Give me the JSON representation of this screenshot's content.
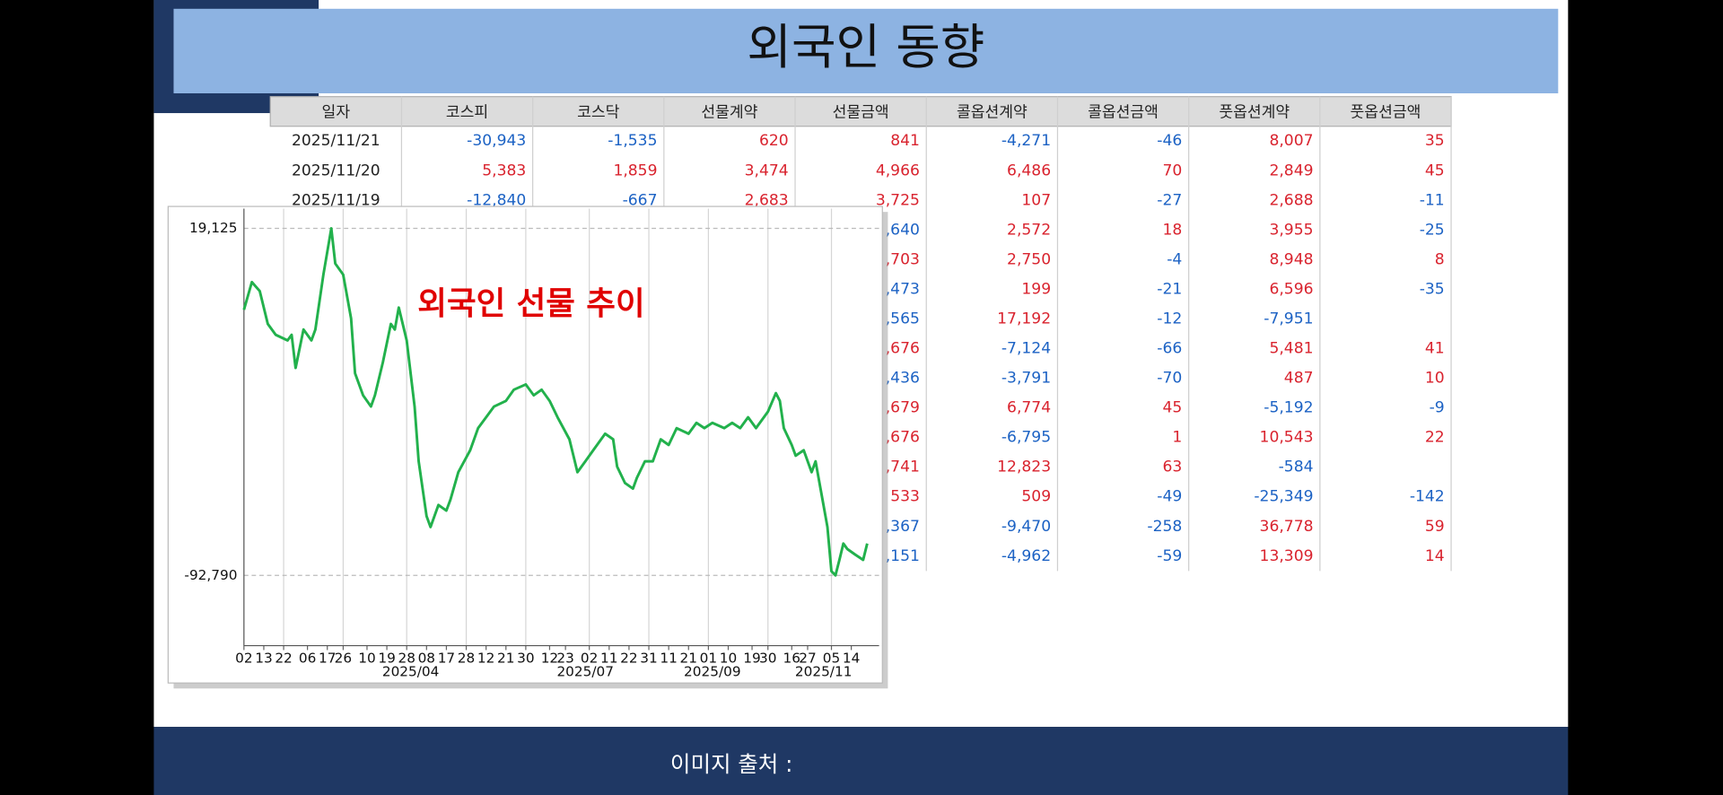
{
  "header": {
    "title": "외국인 동향"
  },
  "table": {
    "columns": [
      "일자",
      "코스피",
      "코스닥",
      "선물계약",
      "선물금액",
      "콜옵션계약",
      "콜옵션금액",
      "풋옵션계약",
      "풋옵션금액"
    ],
    "positive_color": "#d9232e",
    "negative_color": "#1c62c4",
    "rows": [
      [
        "2025/11/21",
        "-30,943",
        "-1,535",
        "620",
        "841",
        "-4,271",
        "-46",
        "8,007",
        "35"
      ],
      [
        "2025/11/20",
        "5,383",
        "1,859",
        "3,474",
        "4,966",
        "6,486",
        "70",
        "2,849",
        "45"
      ],
      [
        "2025/11/19",
        "-12,840",
        "-667",
        "2,683",
        "3,725",
        "107",
        "-27",
        "2,688",
        "-11"
      ],
      [
        null,
        null,
        null,
        null,
        {
          "text": ",640",
          "color": "#1c62c4"
        },
        "2,572",
        "18",
        "3,955",
        "-25"
      ],
      [
        null,
        null,
        null,
        null,
        {
          "text": ",703",
          "color": "#d9232e"
        },
        "2,750",
        "-4",
        "8,948",
        "8"
      ],
      [
        null,
        null,
        null,
        null,
        {
          "text": ",473",
          "color": "#1c62c4"
        },
        "199",
        "-21",
        "6,596",
        "-35"
      ],
      [
        null,
        null,
        null,
        null,
        {
          "text": ",565",
          "color": "#1c62c4"
        },
        "17,192",
        "-12",
        "-7,951",
        null
      ],
      [
        null,
        null,
        null,
        null,
        {
          "text": ",676",
          "color": "#d9232e"
        },
        "-7,124",
        "-66",
        "5,481",
        "41"
      ],
      [
        null,
        null,
        null,
        null,
        {
          "text": ",436",
          "color": "#1c62c4"
        },
        "-3,791",
        "-70",
        "487",
        "10"
      ],
      [
        null,
        null,
        null,
        null,
        {
          "text": ",679",
          "color": "#d9232e"
        },
        "6,774",
        "45",
        "-5,192",
        "-9"
      ],
      [
        null,
        null,
        null,
        null,
        {
          "text": ",676",
          "color": "#d9232e"
        },
        "-6,795",
        "1",
        "10,543",
        "22"
      ],
      [
        null,
        null,
        null,
        null,
        {
          "text": ",741",
          "color": "#d9232e"
        },
        "12,823",
        "63",
        "-584",
        null
      ],
      [
        null,
        null,
        null,
        null,
        {
          "text": "533",
          "color": "#d9232e"
        },
        "509",
        "-49",
        "-25,349",
        "-142"
      ],
      [
        null,
        null,
        null,
        null,
        {
          "text": ",367",
          "color": "#1c62c4"
        },
        "-9,470",
        "-258",
        "36,778",
        "59"
      ],
      [
        null,
        null,
        null,
        null,
        {
          "text": ",151",
          "color": "#1c62c4"
        },
        "-4,962",
        "-59",
        "13,309",
        "14"
      ]
    ]
  },
  "chart_data": {
    "type": "line",
    "title": "외국인 선물 추이",
    "title_color": "#e00000",
    "x": [
      0,
      2,
      4,
      6,
      8,
      11,
      12,
      13,
      15,
      17,
      18,
      20,
      22,
      23,
      25,
      27,
      28,
      30,
      32,
      33,
      35,
      37,
      38,
      39,
      41,
      43,
      44,
      46,
      47,
      49,
      51,
      52,
      54,
      57,
      59,
      61,
      63,
      66,
      68,
      71,
      73,
      75,
      77,
      79,
      82,
      84,
      86,
      88,
      91,
      93,
      94,
      96,
      98,
      99,
      101,
      103,
      105,
      107,
      109,
      112,
      114,
      116,
      118,
      121,
      123,
      125,
      127,
      129,
      132,
      134,
      135,
      136,
      138,
      139,
      141,
      143,
      144,
      146,
      147,
      148,
      149,
      150,
      151,
      152,
      154,
      156,
      157
    ],
    "series": [
      {
        "color": "#22b14c",
        "values": [
          -7100,
          1800,
          -1100,
          -11700,
          -15200,
          -17000,
          -15200,
          -25900,
          -13500,
          -17000,
          -13500,
          4200,
          19125,
          7800,
          4200,
          -9900,
          -27600,
          -34700,
          -38300,
          -34700,
          -24100,
          -11700,
          -13500,
          -6400,
          -17000,
          -38300,
          -56000,
          -73700,
          -77200,
          -70100,
          -71900,
          -68400,
          -59500,
          -52400,
          -45300,
          -41800,
          -38300,
          -36500,
          -32900,
          -31200,
          -34700,
          -32900,
          -36500,
          -41800,
          -48900,
          -59500,
          -56000,
          -52400,
          -47100,
          -48900,
          -57700,
          -63000,
          -64800,
          -61300,
          -56000,
          -56000,
          -48900,
          -50700,
          -45300,
          -47100,
          -43600,
          -45300,
          -43600,
          -45300,
          -43600,
          -45300,
          -41800,
          -45300,
          -40000,
          -34000,
          -36500,
          -45300,
          -50700,
          -54200,
          -52400,
          -59500,
          -56000,
          -70100,
          -77200,
          -91400,
          -92790,
          -87800,
          -82500,
          -84300,
          -86100,
          -87800,
          -82500
        ]
      }
    ],
    "xlim": [
      0,
      160
    ],
    "ylim": [
      -115450,
      25500
    ],
    "yticks": [
      {
        "value": 19125,
        "label": "19,125"
      },
      {
        "value": -92790,
        "label": "-92,790"
      }
    ],
    "xticks": [
      {
        "value": 0,
        "label": "02"
      },
      {
        "value": 5,
        "label": "13"
      },
      {
        "value": 10,
        "label": "22"
      },
      {
        "value": 16,
        "label": "06"
      },
      {
        "value": 21,
        "label": "17"
      },
      {
        "value": 25,
        "label": "26"
      },
      {
        "value": 31,
        "label": "10"
      },
      {
        "value": 36,
        "label": "19"
      },
      {
        "value": 41,
        "label": "28"
      },
      {
        "value": 46,
        "label": "08"
      },
      {
        "value": 51,
        "label": "17"
      },
      {
        "value": 56,
        "label": "28"
      },
      {
        "value": 61,
        "label": "12"
      },
      {
        "value": 66,
        "label": "21"
      },
      {
        "value": 71,
        "label": "30"
      },
      {
        "value": 77,
        "label": "12"
      },
      {
        "value": 81,
        "label": "23"
      },
      {
        "value": 87,
        "label": "02"
      },
      {
        "value": 92,
        "label": "11"
      },
      {
        "value": 97,
        "label": "22"
      },
      {
        "value": 102,
        "label": "31"
      },
      {
        "value": 107,
        "label": "11"
      },
      {
        "value": 112,
        "label": "21"
      },
      {
        "value": 117,
        "label": "01"
      },
      {
        "value": 122,
        "label": "10"
      },
      {
        "value": 128,
        "label": "19"
      },
      {
        "value": 132,
        "label": "30"
      },
      {
        "value": 138,
        "label": "16"
      },
      {
        "value": 142,
        "label": "27"
      },
      {
        "value": 148,
        "label": "05"
      },
      {
        "value": 153,
        "label": "14"
      }
    ],
    "x_groups": [
      {
        "value": 42,
        "label": "2025/04"
      },
      {
        "value": 86,
        "label": "2025/07"
      },
      {
        "value": 118,
        "label": "2025/09"
      },
      {
        "value": 146,
        "label": "2025/11"
      }
    ],
    "grid": true
  },
  "footer": {
    "text": "이미지 출처 :"
  }
}
